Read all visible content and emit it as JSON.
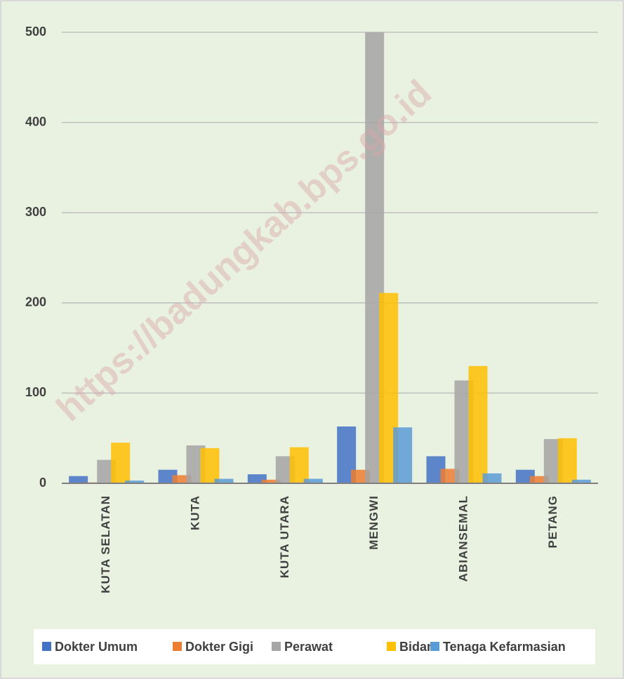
{
  "chart_data": {
    "type": "bar",
    "watermark": "https://badungkab.bps.go.id",
    "categories": [
      "KUTA SELATAN",
      "KUTA",
      "KUTA UTARA",
      "MENGWI",
      "ABIANSEMAL",
      "PETANG"
    ],
    "series": [
      {
        "name": "Dokter Umum",
        "color": "#4472c4",
        "values": [
          8,
          15,
          10,
          63,
          30,
          15
        ]
      },
      {
        "name": "Dokter Gigi",
        "color": "#ed7d31",
        "values": [
          1,
          9,
          4,
          15,
          16,
          8
        ]
      },
      {
        "name": "Perawat",
        "color": "#a5a5a5",
        "values": [
          26,
          42,
          30,
          500,
          114,
          49
        ]
      },
      {
        "name": "Bidan",
        "color": "#ffc000",
        "values": [
          45,
          39,
          40,
          211,
          130,
          50
        ]
      },
      {
        "name": "Tenaga Kefarmasian",
        "color": "#5b9bd5",
        "values": [
          3,
          5,
          5,
          62,
          11,
          4
        ]
      }
    ],
    "ylim": [
      0,
      500
    ],
    "yticks": [
      0,
      100,
      200,
      300,
      400,
      500
    ],
    "grid": true,
    "legend": "bottom"
  }
}
